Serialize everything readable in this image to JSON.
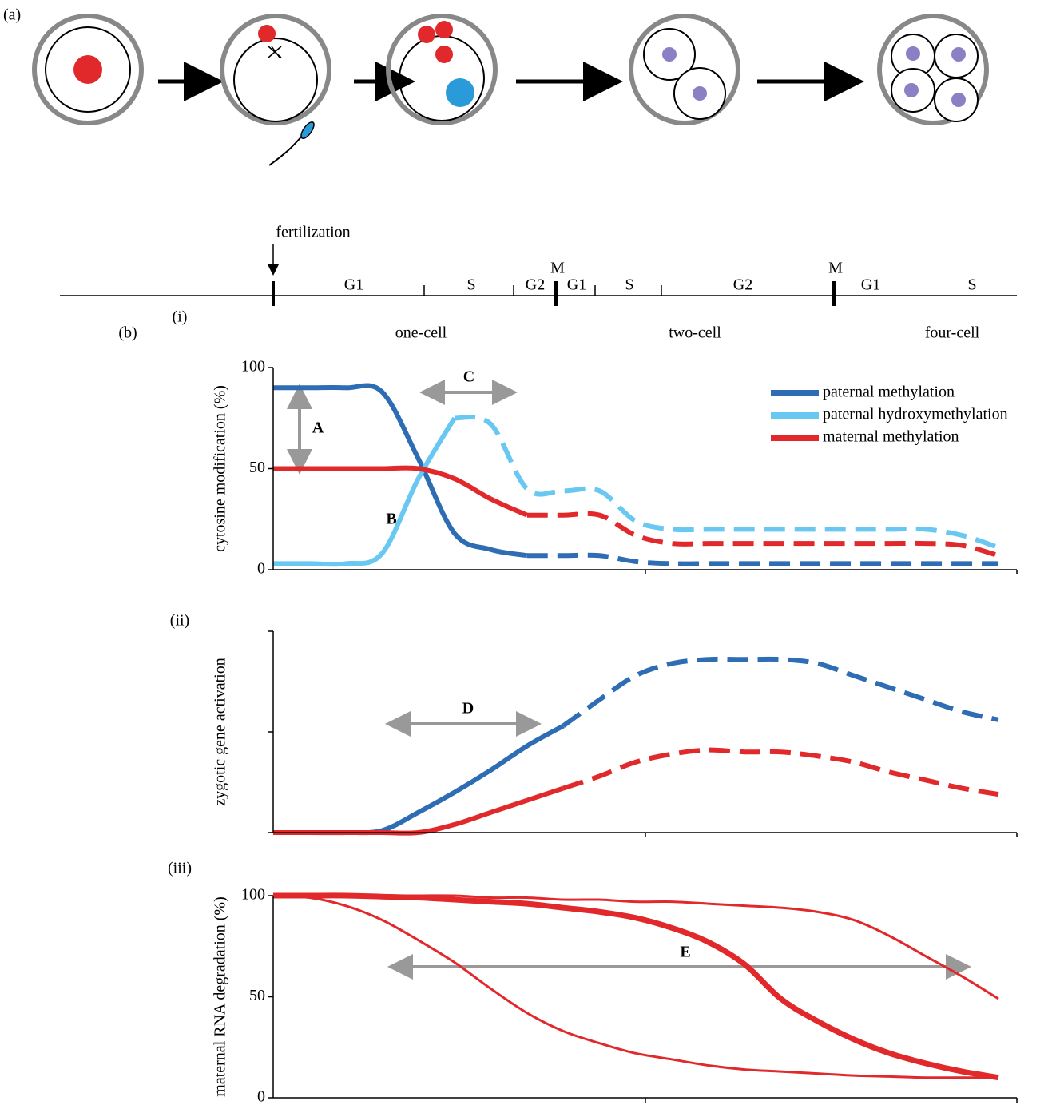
{
  "panel_a": {
    "label": "(a)"
  },
  "timeline": {
    "event": "fertilization",
    "phases": [
      "G1",
      "S",
      "G2",
      "G1",
      "S",
      "G2",
      "G1",
      "S"
    ],
    "mitosis": [
      "M",
      "M"
    ],
    "panel_label": "(b)",
    "stages": [
      "one-cell",
      "two-cell",
      "four-cell"
    ]
  },
  "chart_data": [
    {
      "type": "line",
      "panel": "(i)",
      "y_label": "cytosine modification (%)",
      "ylim": [
        0,
        100
      ],
      "yticks": [
        0,
        50,
        100
      ],
      "show_tick_labels": true,
      "legend": "upper right",
      "annotations": [
        "A",
        "B",
        "C"
      ],
      "categories": [
        null,
        null,
        null,
        null,
        null,
        null,
        null,
        null,
        null,
        null,
        null,
        null,
        null,
        null,
        null,
        null,
        null,
        null,
        null,
        null,
        null
      ],
      "series": [
        {
          "name": "paternal methylation",
          "color": "#2e6db4",
          "width": 6,
          "dashed_from": 7,
          "values": [
            90,
            90,
            90,
            88,
            55,
            18,
            10,
            7,
            7,
            7,
            4,
            3,
            3,
            3,
            3,
            3,
            3,
            3,
            3,
            3,
            3
          ]
        },
        {
          "name": "paternal hydroxymethylation",
          "color": "#69c8f2",
          "width": 6,
          "dashed_from": 5,
          "values": [
            3,
            3,
            3,
            8,
            45,
            75,
            72,
            40,
            39,
            39,
            24,
            20,
            20,
            20,
            20,
            20,
            20,
            20,
            20,
            17,
            11
          ]
        },
        {
          "name": "maternal methylation",
          "color": "#e1292b",
          "width": 6,
          "dashed_from": 7,
          "values": [
            50,
            50,
            50,
            50,
            50,
            45,
            35,
            27,
            27,
            27,
            17,
            13,
            13,
            13,
            13,
            13,
            13,
            13,
            13,
            12,
            7
          ]
        }
      ]
    },
    {
      "type": "line",
      "panel": "(ii)",
      "y_label": "zygotic gene activation",
      "ylim": [
        0,
        100
      ],
      "yticks": [
        0,
        50,
        100
      ],
      "show_tick_labels": false,
      "annotations": [
        "D"
      ],
      "categories": [
        null,
        null,
        null,
        null,
        null,
        null,
        null,
        null,
        null,
        null,
        null,
        null,
        null,
        null,
        null,
        null,
        null,
        null,
        null,
        null,
        null
      ],
      "series": [
        {
          "color": "#2e6db4",
          "width": 6,
          "dashed_from": 8,
          "values": [
            0,
            0,
            0,
            1,
            10,
            20,
            31,
            43,
            53,
            66,
            78,
            84,
            86,
            86,
            86,
            84,
            78,
            72,
            66,
            60,
            56
          ]
        },
        {
          "color": "#e1292b",
          "width": 6,
          "dashed_from": 8,
          "values": [
            0,
            0,
            0,
            0,
            0,
            4,
            10,
            16,
            22,
            28,
            35,
            39,
            41,
            40,
            40,
            38,
            35,
            30,
            26,
            22,
            19
          ]
        }
      ]
    },
    {
      "type": "line",
      "panel": "(iii)",
      "y_label": "maternal RNA degradation (%)",
      "ylim": [
        0,
        100
      ],
      "yticks": [
        0,
        50,
        100
      ],
      "show_tick_labels": true,
      "annotations": [
        "E"
      ],
      "categories": [
        null,
        null,
        null,
        null,
        null,
        null,
        null,
        null,
        null,
        null,
        null,
        null,
        null,
        null,
        null,
        null,
        null,
        null,
        null,
        null,
        null
      ],
      "series": [
        {
          "color": "#e1292b",
          "width": 3,
          "values": [
            100,
            99,
            95,
            88,
            78,
            67,
            54,
            42,
            33,
            27,
            22,
            19,
            16,
            14,
            13,
            12,
            11,
            10.5,
            10,
            10,
            10
          ]
        },
        {
          "color": "#e1292b",
          "width": 7,
          "values": [
            100,
            100,
            100,
            99.5,
            99,
            98,
            97,
            96,
            94,
            92,
            89,
            84,
            77,
            66,
            49,
            38,
            29,
            22,
            17,
            13,
            10
          ]
        },
        {
          "color": "#e1292b",
          "width": 3,
          "values": [
            100,
            100,
            100,
            100,
            100,
            100,
            99,
            99,
            98,
            98,
            97,
            97,
            96,
            95,
            94,
            92,
            88,
            80,
            70,
            60,
            49
          ]
        }
      ]
    }
  ]
}
